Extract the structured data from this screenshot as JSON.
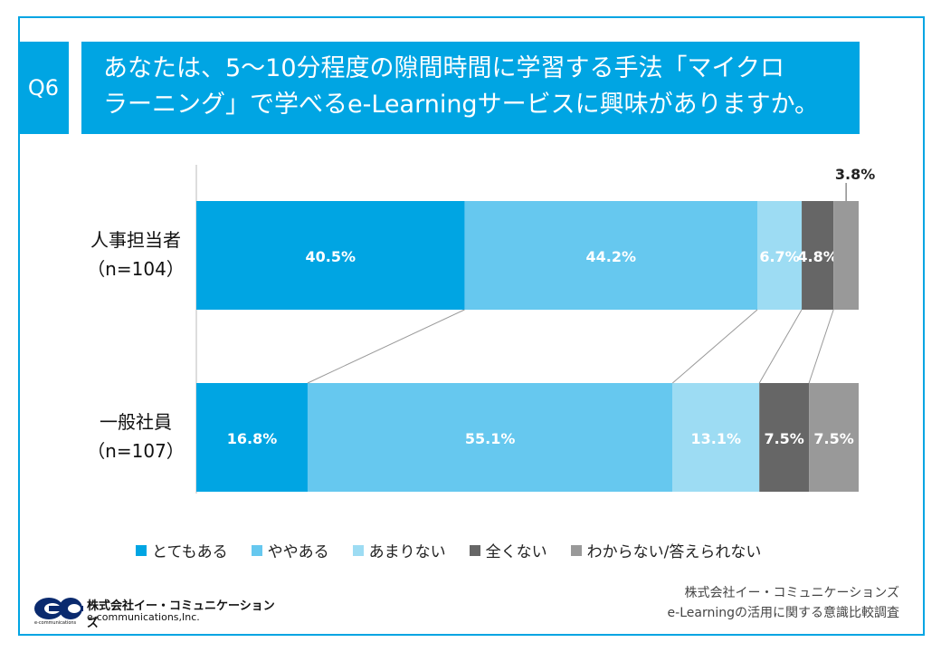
{
  "question": {
    "label": "Q6",
    "text": "あなたは、5〜10分程度の隙間時間に学習する手法「マイクロ\nラーニング」で学べるe-Learningサービスに興味がありますか。"
  },
  "colors": {
    "accent": "#00a5e3",
    "series": [
      "#00a5e3",
      "#66c8ef",
      "#9ddcf3",
      "#666666",
      "#999999"
    ]
  },
  "chart_data": {
    "type": "bar",
    "orientation": "horizontal-stacked-100",
    "categories": [
      {
        "label": "人事担当者",
        "n": "（n=104）"
      },
      {
        "label": "一般社員",
        "n": "（n=107）"
      }
    ],
    "series": [
      {
        "name": "とてもある",
        "values": [
          40.5,
          16.8
        ]
      },
      {
        "name": "ややある",
        "values": [
          44.2,
          55.1
        ]
      },
      {
        "name": "あまりない",
        "values": [
          6.7,
          13.1
        ]
      },
      {
        "name": "全くない",
        "values": [
          4.8,
          7.5
        ]
      },
      {
        "name": "わからない/答えられない",
        "values": [
          3.8,
          7.5
        ]
      }
    ],
    "value_suffix": "%",
    "xlim": [
      0,
      100
    ],
    "legend_position": "bottom",
    "grid": false
  },
  "source": {
    "line1": "株式会社イー・コミュニケーションズ",
    "line2": "e-Learningの活用に関する意識比較調査"
  },
  "logo": {
    "name_ja": "株式会社イー・コミュニケーションズ",
    "name_en": "e-communications,Inc.",
    "small": "e-communications"
  }
}
